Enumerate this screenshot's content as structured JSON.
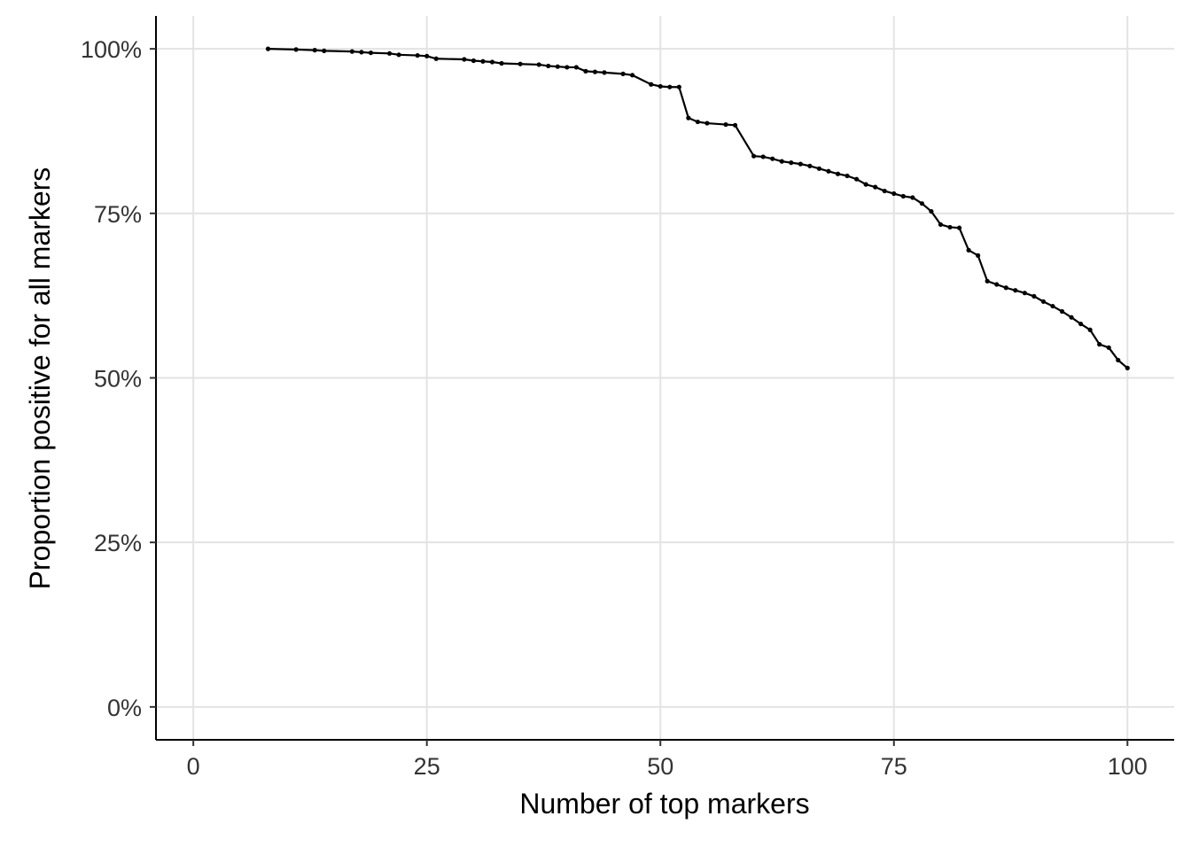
{
  "chart_data": {
    "type": "line",
    "x_label": "Number of top markers",
    "y_label": "Proportion positive for all markers",
    "x": [
      8,
      11,
      13,
      14,
      17,
      18,
      19,
      21,
      22,
      24,
      25,
      26,
      29,
      30,
      31,
      32,
      33,
      35,
      37,
      38,
      39,
      40,
      41,
      42,
      43,
      44,
      46,
      47,
      49,
      50,
      51,
      52,
      53,
      54,
      55,
      57,
      58,
      60,
      61,
      62,
      63,
      64,
      65,
      66,
      67,
      68,
      69,
      70,
      71,
      72,
      73,
      74,
      75,
      76,
      77,
      78,
      79,
      80,
      81,
      82,
      83,
      84,
      85,
      86,
      87,
      88,
      89,
      90,
      91,
      92,
      93,
      94,
      95,
      96,
      97,
      98,
      99,
      100
    ],
    "series": [
      {
        "color": "#000000",
        "values": [
          100,
          99.9,
          99.8,
          99.7,
          99.6,
          99.5,
          99.4,
          99.3,
          99.1,
          99.0,
          98.9,
          98.5,
          98.4,
          98.2,
          98.1,
          98.0,
          97.8,
          97.7,
          97.6,
          97.4,
          97.3,
          97.2,
          97.2,
          96.6,
          96.5,
          96.4,
          96.2,
          96.0,
          94.6,
          94.3,
          94.2,
          94.2,
          89.5,
          88.9,
          88.7,
          88.5,
          88.4,
          83.7,
          83.6,
          83.3,
          82.9,
          82.7,
          82.5,
          82.2,
          81.8,
          81.4,
          81.0,
          80.7,
          80.2,
          79.4,
          79.0,
          78.4,
          78.0,
          77.6,
          77.4,
          76.5,
          75.3,
          73.3,
          72.9,
          72.8,
          69.4,
          68.6,
          64.7,
          64.2,
          63.7,
          63.3,
          62.9,
          62.4,
          61.6,
          60.9,
          60.1,
          59.2,
          58.2,
          57.3,
          55.1,
          54.6,
          52.7,
          51.5
        ]
      }
    ],
    "xlim": [
      -4,
      105
    ],
    "ylim": [
      -5,
      105
    ],
    "xticks": [
      0,
      25,
      50,
      75,
      100
    ],
    "yticks": [
      {
        "value": 0,
        "label": "0%"
      },
      {
        "value": 25,
        "label": "25%"
      },
      {
        "value": 50,
        "label": "50%"
      },
      {
        "value": 75,
        "label": "75%"
      },
      {
        "value": 100,
        "label": "100%"
      }
    ],
    "grid": true
  }
}
